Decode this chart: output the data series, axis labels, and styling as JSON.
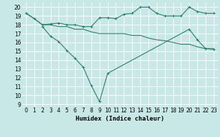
{
  "xlabel": "Humidex (Indice chaleur)",
  "background_color": "#c8e8e8",
  "grid_color": "#d0d0d0",
  "line_color": "#2a7a6a",
  "x_ticks": [
    0,
    1,
    2,
    3,
    4,
    5,
    6,
    7,
    8,
    9,
    10,
    11,
    12,
    13,
    14,
    15,
    16,
    17,
    18,
    19,
    20,
    21,
    22,
    23
  ],
  "y_ticks": [
    9,
    10,
    11,
    12,
    13,
    14,
    15,
    16,
    17,
    18,
    19,
    20
  ],
  "ylim": [
    8.7,
    20.5
  ],
  "xlim": [
    -0.5,
    23.5
  ],
  "line1_x": [
    0,
    1,
    2,
    3,
    4,
    5,
    6,
    7,
    8,
    9,
    10,
    11,
    12,
    13,
    14,
    15,
    16,
    17,
    18,
    19,
    20,
    21,
    22,
    23
  ],
  "line1_y": [
    19.3,
    18.7,
    18.0,
    18.1,
    18.2,
    18.0,
    18.0,
    17.8,
    17.8,
    18.8,
    18.8,
    18.7,
    19.2,
    19.3,
    20.0,
    20.0,
    19.3,
    19.0,
    19.0,
    19.0,
    20.0,
    19.5,
    19.3,
    19.3
  ],
  "line2_x": [
    0,
    1,
    2,
    3,
    4,
    5,
    6,
    7,
    8,
    9,
    10,
    11,
    12,
    13,
    14,
    15,
    16,
    17,
    18,
    19,
    20,
    21,
    22,
    23
  ],
  "line2_y": [
    19.3,
    18.7,
    18.0,
    18.0,
    17.8,
    17.8,
    17.5,
    17.5,
    17.2,
    17.0,
    17.0,
    17.0,
    17.0,
    16.8,
    16.8,
    16.5,
    16.3,
    16.2,
    16.0,
    15.8,
    15.8,
    15.5,
    15.3,
    15.3
  ],
  "line3_x": [
    2,
    3,
    4,
    5,
    6,
    7,
    8,
    9,
    10,
    20,
    21,
    22,
    23
  ],
  "line3_y": [
    17.8,
    16.7,
    16.1,
    15.1,
    14.2,
    13.2,
    11.1,
    9.3,
    12.5,
    17.5,
    16.3,
    15.3,
    15.2
  ],
  "tick_fontsize": 5.5,
  "xlabel_fontsize": 6.5
}
